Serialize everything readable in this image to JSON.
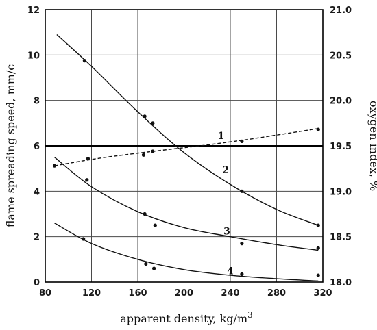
{
  "chart_data": {
    "type": "scatter",
    "xlabel": "apparent density, kg/m",
    "xlabel_sup": "3",
    "ylabel_left": "flame spreading speed, mm/c",
    "ylabel_right": "oxygen index, %",
    "xlim": [
      80,
      320
    ],
    "ylim_left": [
      0,
      12
    ],
    "ylim_right": [
      18.0,
      21.0
    ],
    "x_ticks": [
      "80",
      "120",
      "160",
      "200",
      "240",
      "280",
      "320"
    ],
    "y_ticks_left": [
      "0",
      "2",
      "4",
      "6",
      "8",
      "10",
      "12"
    ],
    "y_ticks_right": [
      "18.0",
      "18.5",
      "19.0",
      "19.5",
      "20.0",
      "20.5",
      "21.0"
    ],
    "grid": true,
    "reference_line_right": 19.5,
    "series": [
      {
        "name": "1",
        "axis": "right",
        "style": "dashed",
        "points": [
          [
            88,
            19.28
          ],
          [
            117,
            19.36
          ],
          [
            165,
            19.4
          ],
          [
            173,
            19.44
          ],
          [
            250,
            19.55
          ],
          [
            316,
            19.68
          ]
        ],
        "curve": [
          [
            88,
            19.28
          ],
          [
            130,
            19.37
          ],
          [
            180,
            19.45
          ],
          [
            220,
            19.51
          ],
          [
            260,
            19.58
          ],
          [
            316,
            19.69
          ]
        ]
      },
      {
        "name": "2",
        "axis": "left",
        "style": "solid",
        "points": [
          [
            114,
            9.75
          ],
          [
            166,
            7.3
          ],
          [
            173,
            7.0
          ],
          [
            250,
            4.0
          ],
          [
            316,
            2.5
          ]
        ],
        "curve": [
          [
            90,
            10.9
          ],
          [
            120,
            9.5
          ],
          [
            160,
            7.5
          ],
          [
            200,
            5.7
          ],
          [
            240,
            4.3
          ],
          [
            280,
            3.2
          ],
          [
            316,
            2.5
          ]
        ]
      },
      {
        "name": "3",
        "axis": "left",
        "style": "solid",
        "points": [
          [
            116,
            4.5
          ],
          [
            166,
            3.0
          ],
          [
            175,
            2.5
          ],
          [
            250,
            1.7
          ],
          [
            316,
            1.5
          ]
        ],
        "curve": [
          [
            88,
            5.5
          ],
          [
            120,
            4.2
          ],
          [
            160,
            3.1
          ],
          [
            200,
            2.4
          ],
          [
            240,
            2.0
          ],
          [
            280,
            1.65
          ],
          [
            316,
            1.4
          ]
        ]
      },
      {
        "name": "4",
        "axis": "left",
        "style": "solid",
        "points": [
          [
            113,
            1.9
          ],
          [
            167,
            0.8
          ],
          [
            174,
            0.6
          ],
          [
            250,
            0.35
          ],
          [
            316,
            0.3
          ]
        ],
        "curve": [
          [
            88,
            2.6
          ],
          [
            120,
            1.7
          ],
          [
            160,
            1.0
          ],
          [
            200,
            0.55
          ],
          [
            240,
            0.3
          ],
          [
            280,
            0.15
          ],
          [
            316,
            0.05
          ]
        ]
      }
    ],
    "curve_labels": [
      {
        "text": "1",
        "x": 232,
        "y": 6.45
      },
      {
        "text": "2",
        "x": 236,
        "y": 4.95
      },
      {
        "text": "3",
        "x": 237,
        "y": 2.25
      },
      {
        "text": "4",
        "x": 240,
        "y": 0.5
      }
    ]
  }
}
